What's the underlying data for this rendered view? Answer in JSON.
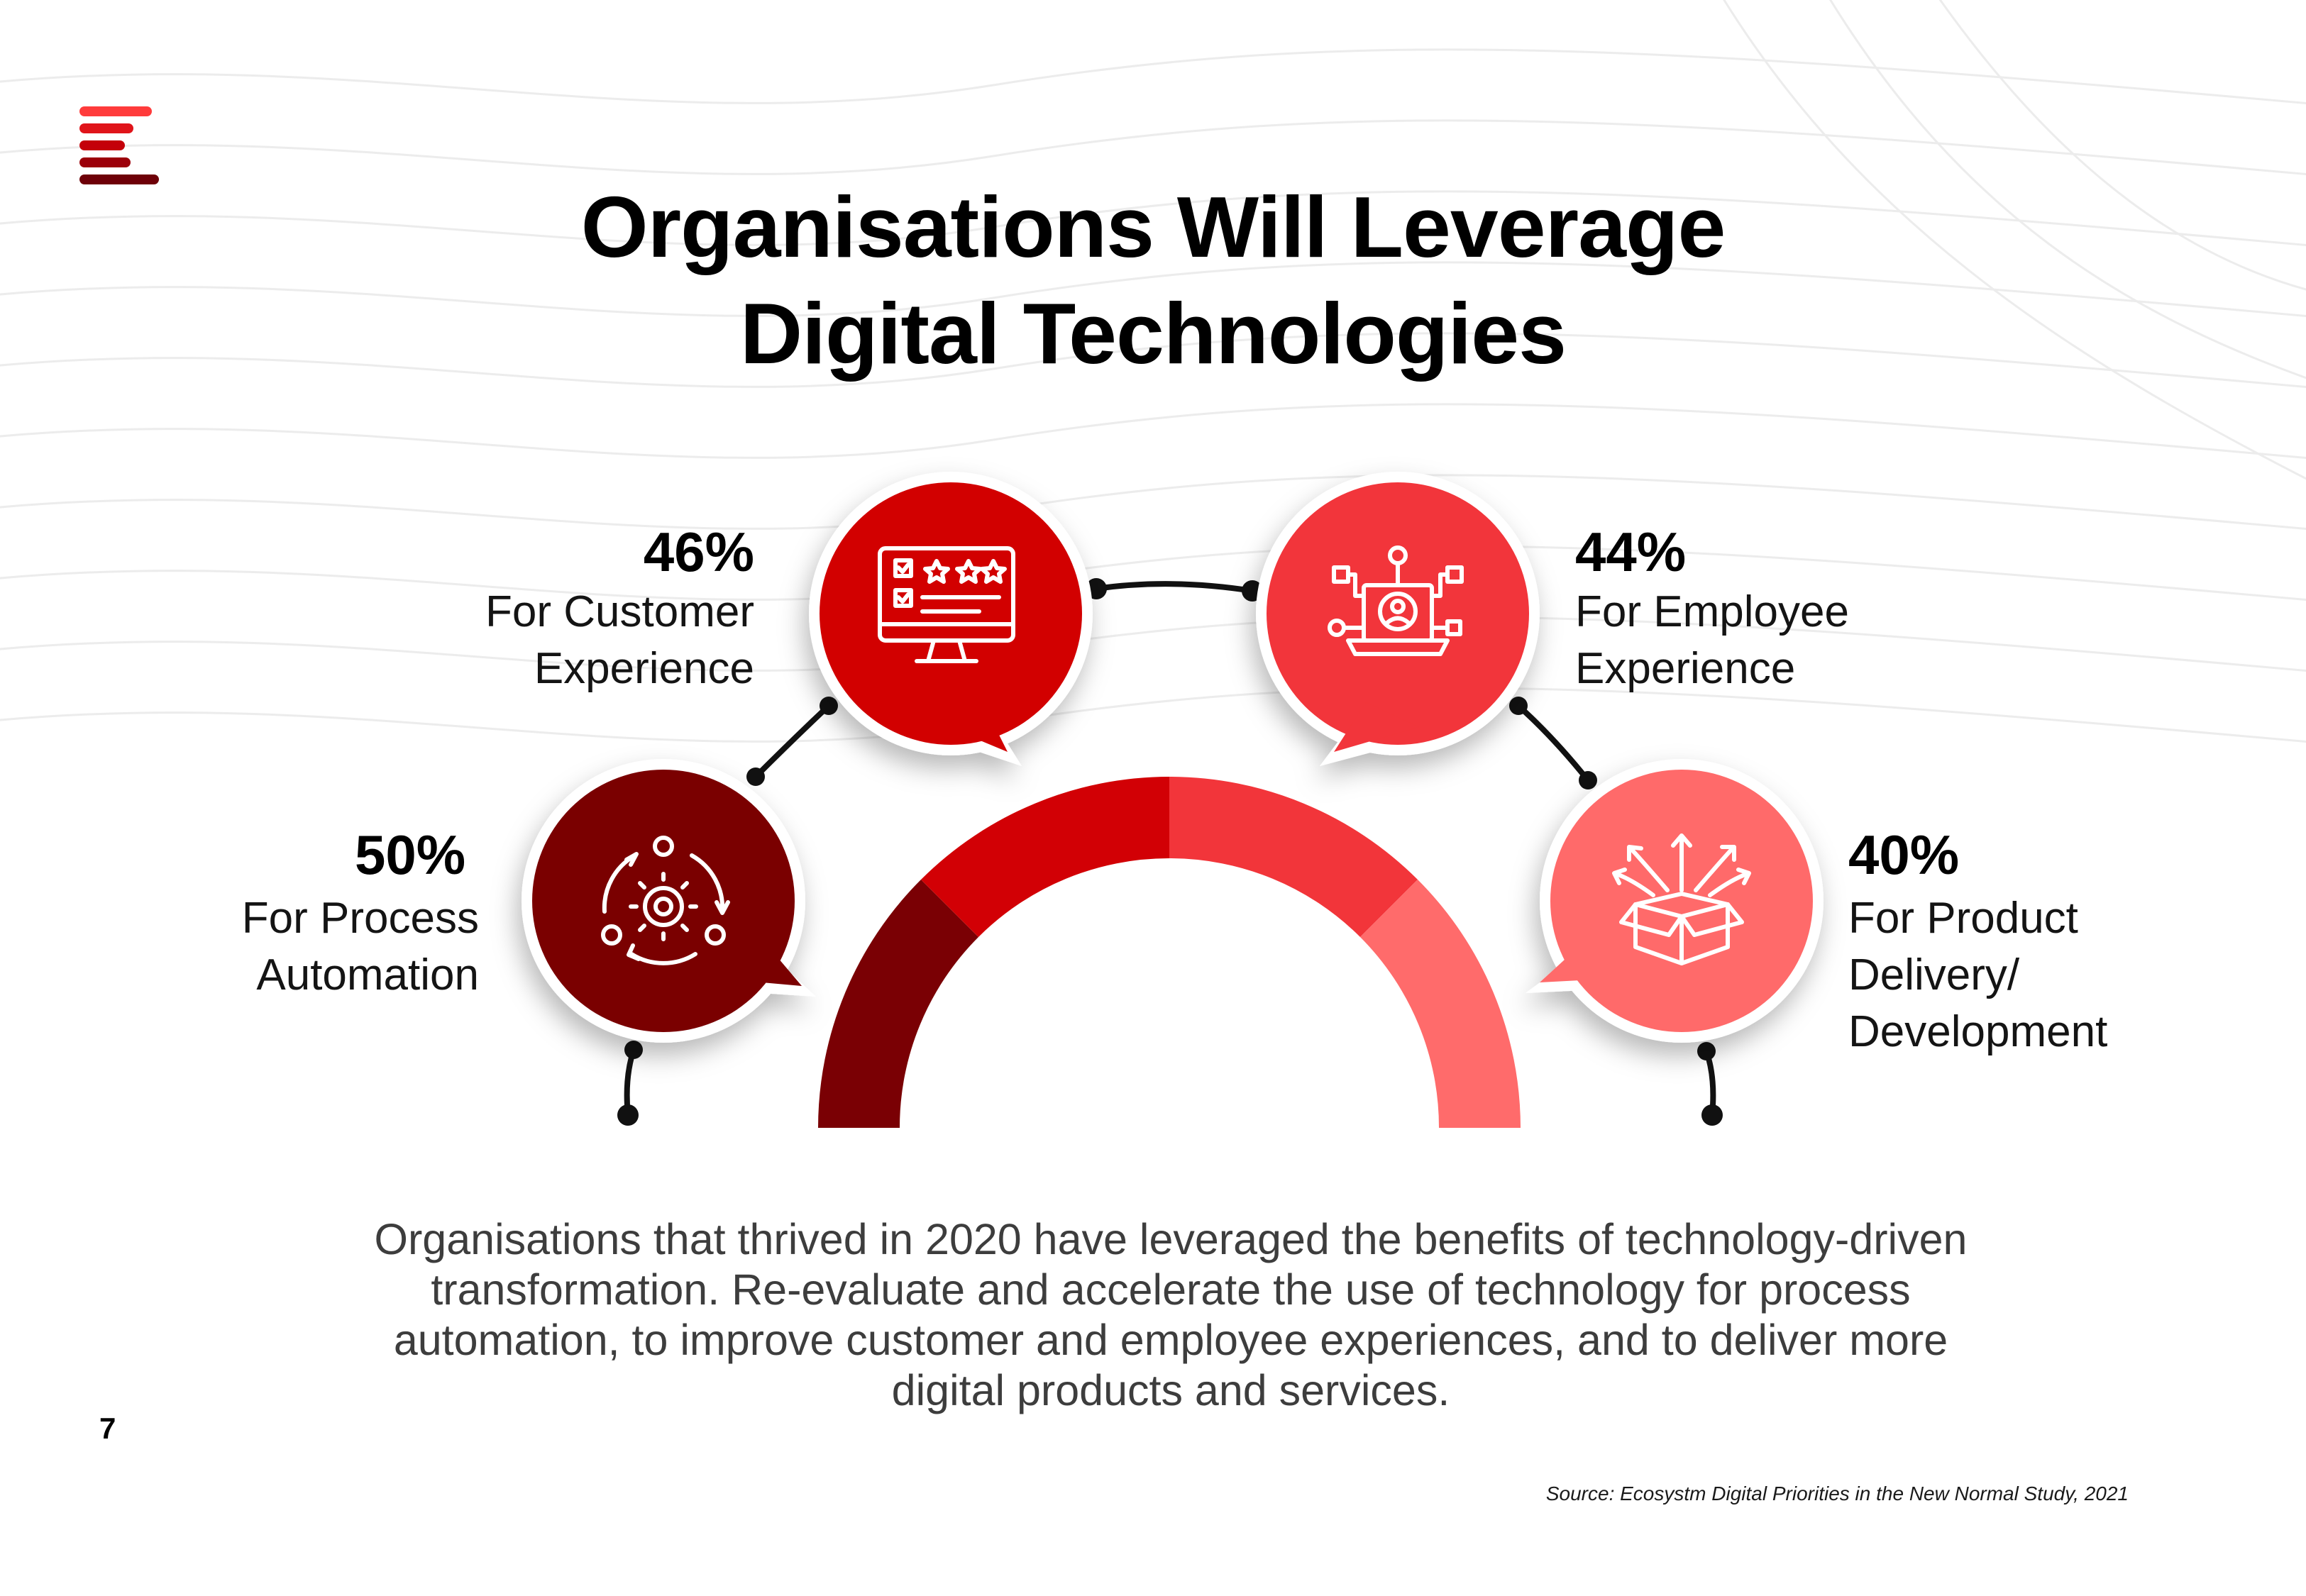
{
  "title": {
    "line1": "Organisations Will Leverage",
    "line2": "Digital Technologies"
  },
  "items": [
    {
      "percent": "50%",
      "label_line1": "For Process",
      "label_line2": "Automation",
      "label_line3": "",
      "icon": "process-automation-icon",
      "color": "#7a0004"
    },
    {
      "percent": "46%",
      "label_line1": "For Customer",
      "label_line2": "Experience",
      "label_line3": "",
      "icon": "monitor-rating-icon",
      "color": "#d20005"
    },
    {
      "percent": "44%",
      "label_line1": "For Employee",
      "label_line2": "Experience",
      "label_line3": "",
      "icon": "laptop-network-icon",
      "color": "#f2353a"
    },
    {
      "percent": "40%",
      "label_line1": "For Product",
      "label_line2": "Delivery/",
      "label_line3": "Development",
      "icon": "open-box-icon",
      "color": "#ff6b6b"
    }
  ],
  "body_text": {
    "line1": "Organisations that thrived in 2020 have leveraged the benefits of technology-driven",
    "line2": "transformation. Re-evaluate and accelerate the use of technology for process",
    "line3": "automation, to improve customer and employee experiences, and to deliver more",
    "line4": "digital products and services."
  },
  "page_number": "7",
  "source": "Source: Ecosystm Digital Priorities  in the New Normal Study, 2021",
  "colors": {
    "dark_red": "#7a0004",
    "red": "#d20005",
    "light_red": "#f2353a",
    "salmon": "#ff6b6b"
  }
}
